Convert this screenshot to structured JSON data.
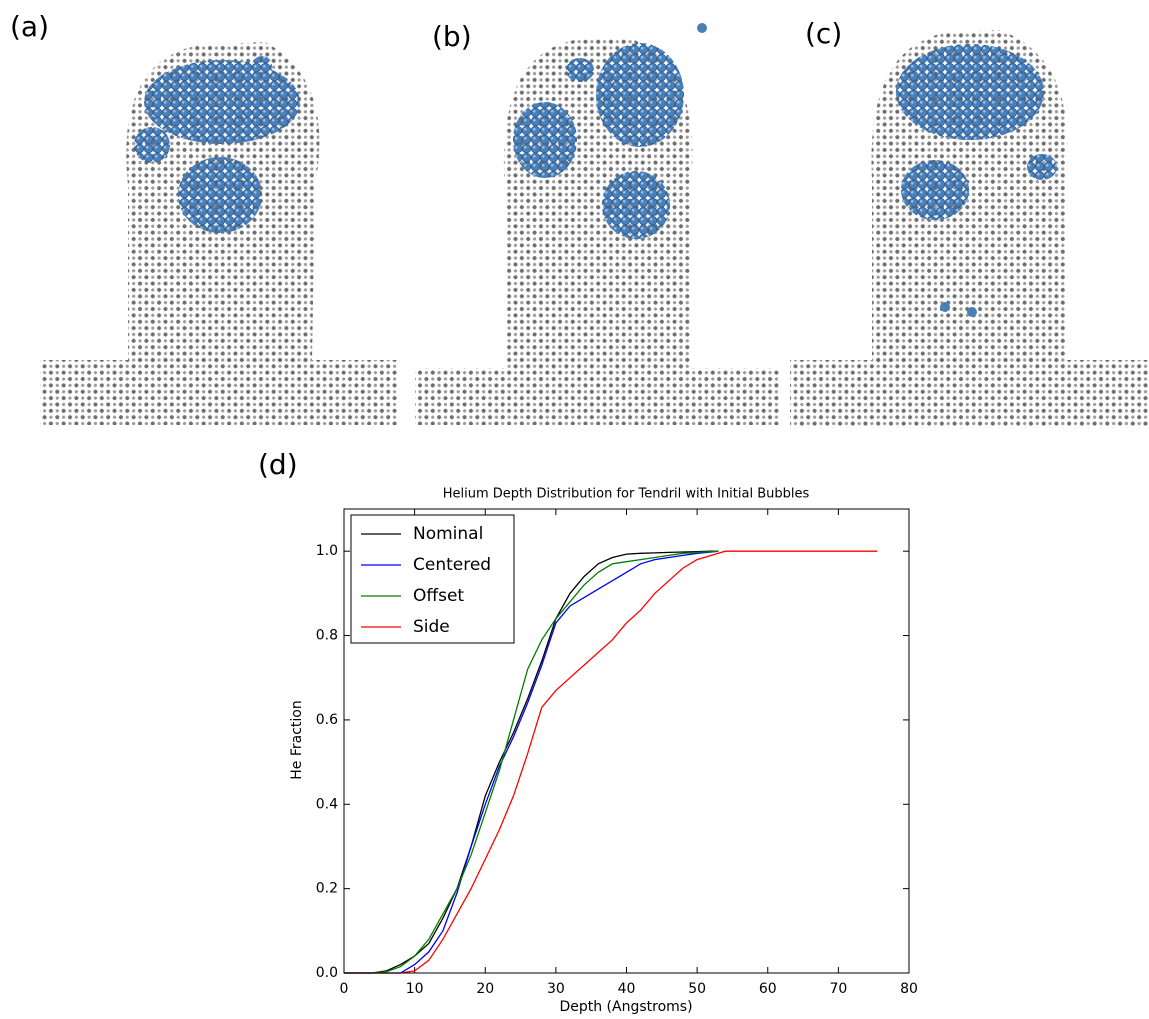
{
  "panel_labels": [
    "(a)",
    "(b)",
    "(c)",
    "(d)"
  ],
  "chart_data": {
    "type": "line",
    "title": "Helium Depth Distribution for Tendril with Initial Bubbles",
    "x_label": "Depth (Angstroms)",
    "y_label": "He Fraction",
    "x": [
      0,
      4,
      6,
      8,
      10,
      12,
      14,
      16,
      18,
      20,
      22,
      24,
      26,
      28,
      30,
      32,
      34,
      36,
      38,
      40,
      42,
      44,
      46,
      48,
      50,
      52,
      53,
      54,
      60,
      70,
      75.5
    ],
    "series": [
      {
        "name": "Nominal",
        "color": "#000000",
        "values": [
          0,
          0,
          0.005,
          0.02,
          0.04,
          0.07,
          0.13,
          0.2,
          0.3,
          0.42,
          0.5,
          0.57,
          0.65,
          0.74,
          0.84,
          0.9,
          0.94,
          0.97,
          0.985,
          0.993,
          0.995,
          0.996,
          0.997,
          0.998,
          0.999,
          1.0,
          1.0,
          null,
          null,
          null,
          null
        ]
      },
      {
        "name": "Centered",
        "color": "#0000ff",
        "values": [
          0,
          0,
          0,
          0,
          0.02,
          0.05,
          0.1,
          0.19,
          0.3,
          0.4,
          0.49,
          0.56,
          0.64,
          0.73,
          0.83,
          0.87,
          0.89,
          0.91,
          0.93,
          0.95,
          0.97,
          0.98,
          0.985,
          0.99,
          0.995,
          0.998,
          1.0,
          null,
          null,
          null,
          null
        ]
      },
      {
        "name": "Offset",
        "color": "#008000",
        "values": [
          0,
          0,
          0.003,
          0.015,
          0.04,
          0.08,
          0.14,
          0.2,
          0.28,
          0.38,
          0.48,
          0.6,
          0.72,
          0.79,
          0.84,
          0.88,
          0.92,
          0.95,
          0.97,
          0.975,
          0.98,
          0.985,
          0.99,
          0.995,
          0.997,
          0.999,
          1.0,
          null,
          null,
          null,
          null
        ]
      },
      {
        "name": "Side",
        "color": "#ff0000",
        "values": [
          0,
          0,
          0,
          0,
          0.005,
          0.03,
          0.08,
          0.14,
          0.2,
          0.27,
          0.34,
          0.42,
          0.52,
          0.63,
          0.67,
          0.7,
          0.73,
          0.76,
          0.79,
          0.83,
          0.86,
          0.9,
          0.93,
          0.96,
          0.98,
          0.99,
          0.995,
          1.0,
          1.0,
          1.0,
          1.0
        ]
      }
    ],
    "xlim": [
      0,
      80
    ],
    "xticks": [
      0,
      10,
      20,
      30,
      40,
      50,
      60,
      70,
      80
    ],
    "ylim": [
      0,
      1.1
    ],
    "yticks": [
      {
        "value": 0,
        "label": "0.0"
      },
      0.2,
      0.4,
      0.6,
      0.8,
      {
        "value": 1,
        "label": "1.0"
      }
    ],
    "grid": false,
    "legend": "upper left"
  }
}
